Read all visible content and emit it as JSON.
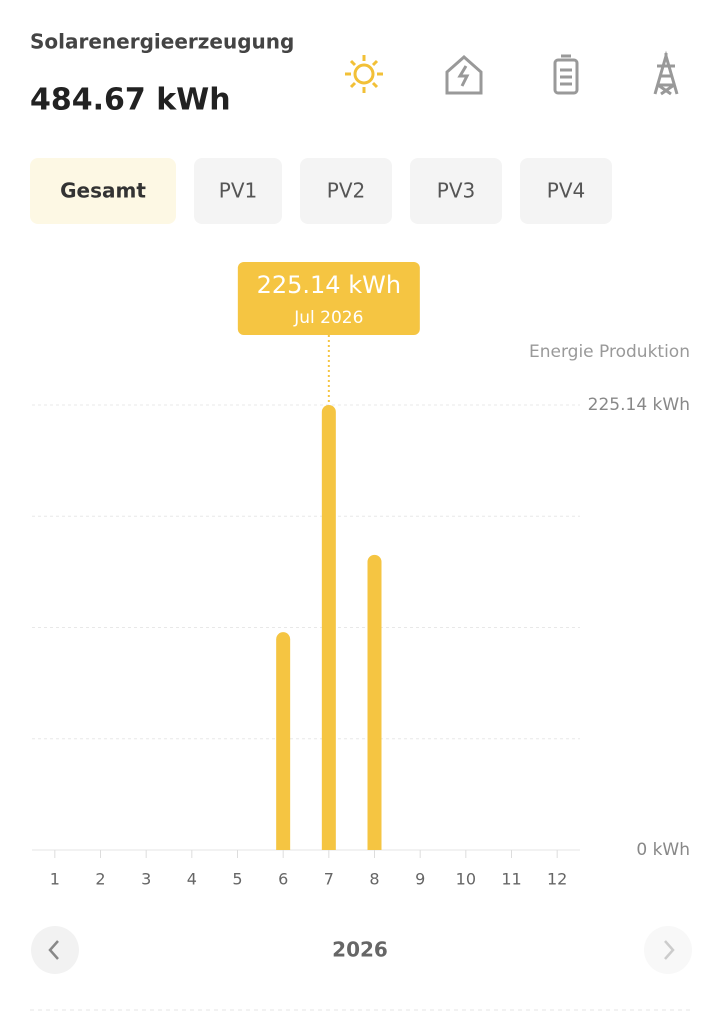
{
  "header": {
    "title": "Solarenergieerzeugung",
    "total": "484.67 kWh"
  },
  "tabs": {
    "items": [
      "Gesamt",
      "PV1",
      "PV2",
      "PV3",
      "PV4"
    ],
    "active": 0
  },
  "navigator": {
    "label": "2026"
  },
  "chart_data": {
    "type": "bar",
    "y_axis_title": "Energie Produktion",
    "categories": [
      "1",
      "2",
      "3",
      "4",
      "5",
      "6",
      "7",
      "8",
      "9",
      "10",
      "11",
      "12"
    ],
    "values": [
      null,
      null,
      null,
      null,
      null,
      110.2,
      225.14,
      149.33,
      null,
      null,
      null,
      null
    ],
    "value_labels": [
      null,
      null,
      null,
      null,
      null,
      null,
      "225.14 kWh",
      null,
      null,
      null,
      null,
      null
    ],
    "tooltip_date": "Jul 2026",
    "color": "#f5c542",
    "ylim": [
      0,
      225.14
    ],
    "yticks": [
      {
        "value": 0,
        "label": "0 kWh"
      },
      {
        "value": 56.285,
        "label": null
      },
      {
        "value": 112.57,
        "label": null
      },
      {
        "value": 168.855,
        "label": null
      },
      {
        "value": 225.14,
        "label": "225.14 kWh"
      }
    ],
    "grid": true
  }
}
